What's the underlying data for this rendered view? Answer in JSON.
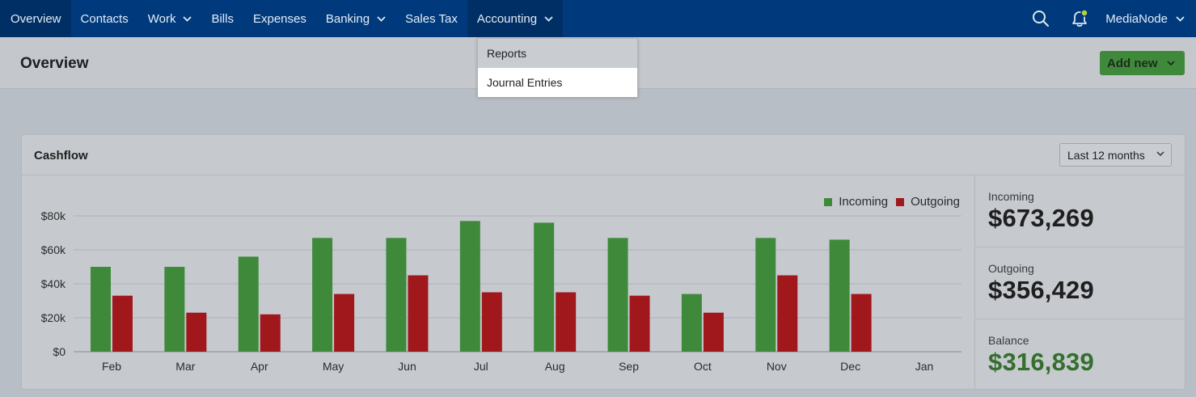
{
  "nav": {
    "items": [
      {
        "label": "Overview",
        "dropdown": false,
        "active": true
      },
      {
        "label": "Contacts",
        "dropdown": false,
        "active": false
      },
      {
        "label": "Work",
        "dropdown": true,
        "active": false
      },
      {
        "label": "Bills",
        "dropdown": false,
        "active": false
      },
      {
        "label": "Expenses",
        "dropdown": false,
        "active": false
      },
      {
        "label": "Banking",
        "dropdown": true,
        "active": false
      },
      {
        "label": "Sales Tax",
        "dropdown": false,
        "active": false
      },
      {
        "label": "Accounting",
        "dropdown": true,
        "active": true
      }
    ],
    "search_icon": "search-icon",
    "notification_icon": "bell-icon",
    "user_name": "MediaNode"
  },
  "accounting_menu": {
    "items": [
      "Reports",
      "Journal Entries"
    ],
    "hovered": "Journal Entries"
  },
  "header": {
    "title": "Overview",
    "add_new_label": "Add new"
  },
  "cashflow": {
    "title": "Cashflow",
    "range": "Last 12 months",
    "stats": [
      {
        "label": "Incoming",
        "value": "$673,269",
        "positive": false
      },
      {
        "label": "Outgoing",
        "value": "$356,429",
        "positive": false
      },
      {
        "label": "Balance",
        "value": "$316,839",
        "positive": true
      }
    ]
  },
  "colors": {
    "incoming": "#3f8a3a",
    "outgoing": "#a0181c",
    "accent": "#003a7d"
  },
  "chart_data": {
    "type": "bar",
    "categories": [
      "Feb",
      "Mar",
      "Apr",
      "May",
      "Jun",
      "Jul",
      "Aug",
      "Sep",
      "Oct",
      "Nov",
      "Dec",
      "Jan"
    ],
    "series": [
      {
        "name": "Incoming",
        "values": [
          50000,
          50000,
          56000,
          67000,
          67000,
          77000,
          76000,
          67000,
          34000,
          67000,
          66000,
          0
        ]
      },
      {
        "name": "Outgoing",
        "values": [
          33000,
          23000,
          22000,
          34000,
          45000,
          35000,
          35000,
          33000,
          23000,
          45000,
          34000,
          0
        ]
      }
    ],
    "yticks": [
      "$0",
      "$20k",
      "$40k",
      "$60k",
      "$80k"
    ],
    "ylim": [
      0,
      80000
    ],
    "grid": true,
    "legend": "top-right"
  }
}
